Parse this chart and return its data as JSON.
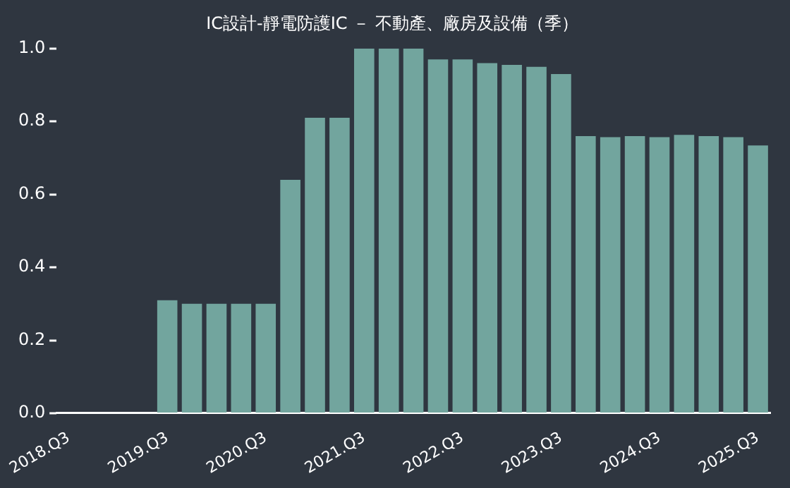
{
  "chart_data": {
    "type": "bar",
    "title": "IC設計-靜電防護IC － 不動產、廠房及設備（季）",
    "categories": [
      "2018.Q3",
      null,
      null,
      null,
      "2019.Q3",
      null,
      null,
      null,
      "2020.Q3",
      null,
      null,
      null,
      "2021.Q3",
      null,
      null,
      null,
      "2022.Q3",
      null,
      null,
      null,
      "2023.Q3",
      null,
      null,
      null,
      "2024.Q3",
      null,
      null,
      null,
      "2025.Q3"
    ],
    "values": [
      null,
      null,
      null,
      null,
      0.31,
      0.3,
      0.3,
      0.3,
      0.3,
      0.64,
      0.81,
      0.81,
      1.0,
      1.0,
      1.0,
      0.97,
      0.97,
      0.96,
      0.955,
      0.95,
      0.93,
      0.76,
      0.757,
      0.76,
      0.757,
      0.763,
      0.76,
      0.757,
      0.734
    ],
    "color": "#72a59e",
    "ylim": [
      0,
      1
    ],
    "yticks": [
      {
        "value": 0,
        "label": "0.0"
      },
      {
        "value": 0.2,
        "label": "0.2"
      },
      {
        "value": 0.4,
        "label": "0.4"
      },
      {
        "value": 0.6,
        "label": "0.6"
      },
      {
        "value": 0.8,
        "label": "0.8"
      },
      {
        "value": 1,
        "label": "1.0"
      }
    ],
    "grid": false,
    "legend": false
  }
}
